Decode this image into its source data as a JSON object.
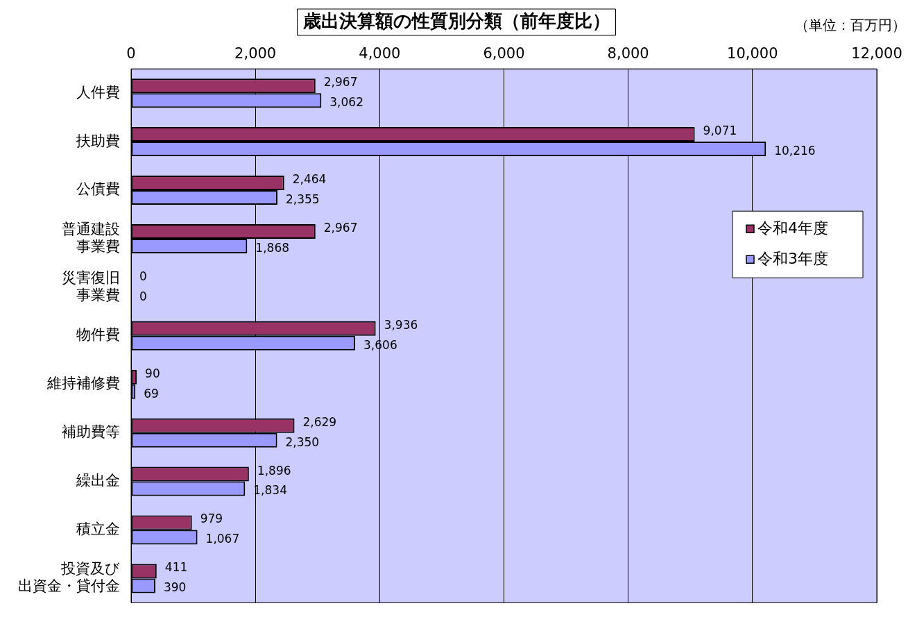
{
  "chart_data": {
    "type": "bar",
    "orientation": "horizontal",
    "title": "歳出決算額の性質別分類（前年度比）",
    "annotations": [
      "（単位：百万円）"
    ],
    "categories": [
      "人件費",
      "扶助費",
      "公債費",
      "普通建設事業費",
      "災害復旧事業費",
      "物件費",
      "維持補修費",
      "補助費等",
      "繰出金",
      "積立金",
      "投資及び出資金・貸付金"
    ],
    "series": [
      {
        "name": "令和4年度",
        "color": "#993366",
        "values": [
          2967,
          9071,
          2464,
          2967,
          0,
          3936,
          90,
          2629,
          1896,
          979,
          411
        ],
        "value_labels": [
          "2,967",
          "9,071",
          "2,464",
          "2,967",
          "0",
          "3,936",
          "90",
          "2,629",
          "1,896",
          "979",
          "411"
        ]
      },
      {
        "name": "令和3年度",
        "color": "#9999ff",
        "values": [
          3062,
          10216,
          2355,
          1868,
          0,
          3606,
          69,
          2350,
          1834,
          1067,
          390
        ],
        "value_labels": [
          "3,062",
          "10,216",
          "2,355",
          "1,868",
          "0",
          "3,606",
          "69",
          "2,350",
          "1,834",
          "1,067",
          "390"
        ]
      }
    ],
    "xlim": [
      0,
      12000
    ],
    "xticks": [
      {
        "value": 0,
        "label": "0"
      },
      {
        "value": 2000,
        "label": "2,000"
      },
      {
        "value": 4000,
        "label": "4,000"
      },
      {
        "value": 6000,
        "label": "6,000"
      },
      {
        "value": 8000,
        "label": "8,000"
      },
      {
        "value": 10000,
        "label": "10,000"
      },
      {
        "value": 12000,
        "label": "12,000"
      }
    ],
    "grid": "x",
    "legend": "right"
  }
}
